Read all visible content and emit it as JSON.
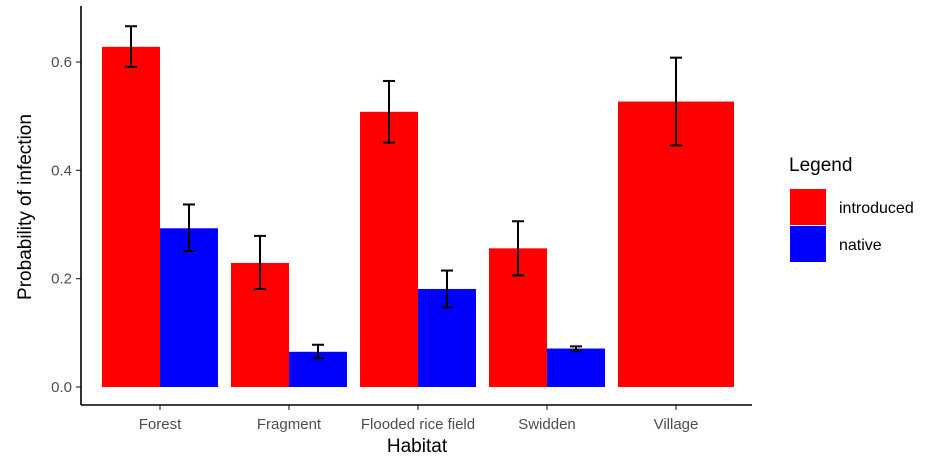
{
  "chart_data": {
    "type": "bar",
    "xlabel": "Habitat",
    "ylabel": "Probability of infection",
    "ylim": [
      0,
      0.67
    ],
    "yticks": [
      "0.0",
      "0.2",
      "0.4",
      "0.6"
    ],
    "ytick_values": [
      0.0,
      0.2,
      0.4,
      0.6
    ],
    "categories": [
      "Forest",
      "Fragment",
      "Flooded rice field",
      "Swidden",
      "Village"
    ],
    "grid": false,
    "legend": {
      "title": "Legend",
      "placement": "right"
    },
    "series": [
      {
        "name": "introduced",
        "color": "#ff0000",
        "values": [
          0.628,
          0.229,
          0.508,
          0.256,
          0.527
        ],
        "err_low": [
          0.591,
          0.181,
          0.451,
          0.206,
          0.446
        ],
        "err_high": [
          0.666,
          0.279,
          0.565,
          0.306,
          0.608
        ]
      },
      {
        "name": "native",
        "color": "#0000ff",
        "values": [
          0.293,
          0.065,
          0.181,
          0.071,
          null
        ],
        "err_low": [
          0.251,
          0.053,
          0.147,
          0.067,
          null
        ],
        "err_high": [
          0.337,
          0.078,
          0.215,
          0.075,
          null
        ]
      }
    ]
  }
}
